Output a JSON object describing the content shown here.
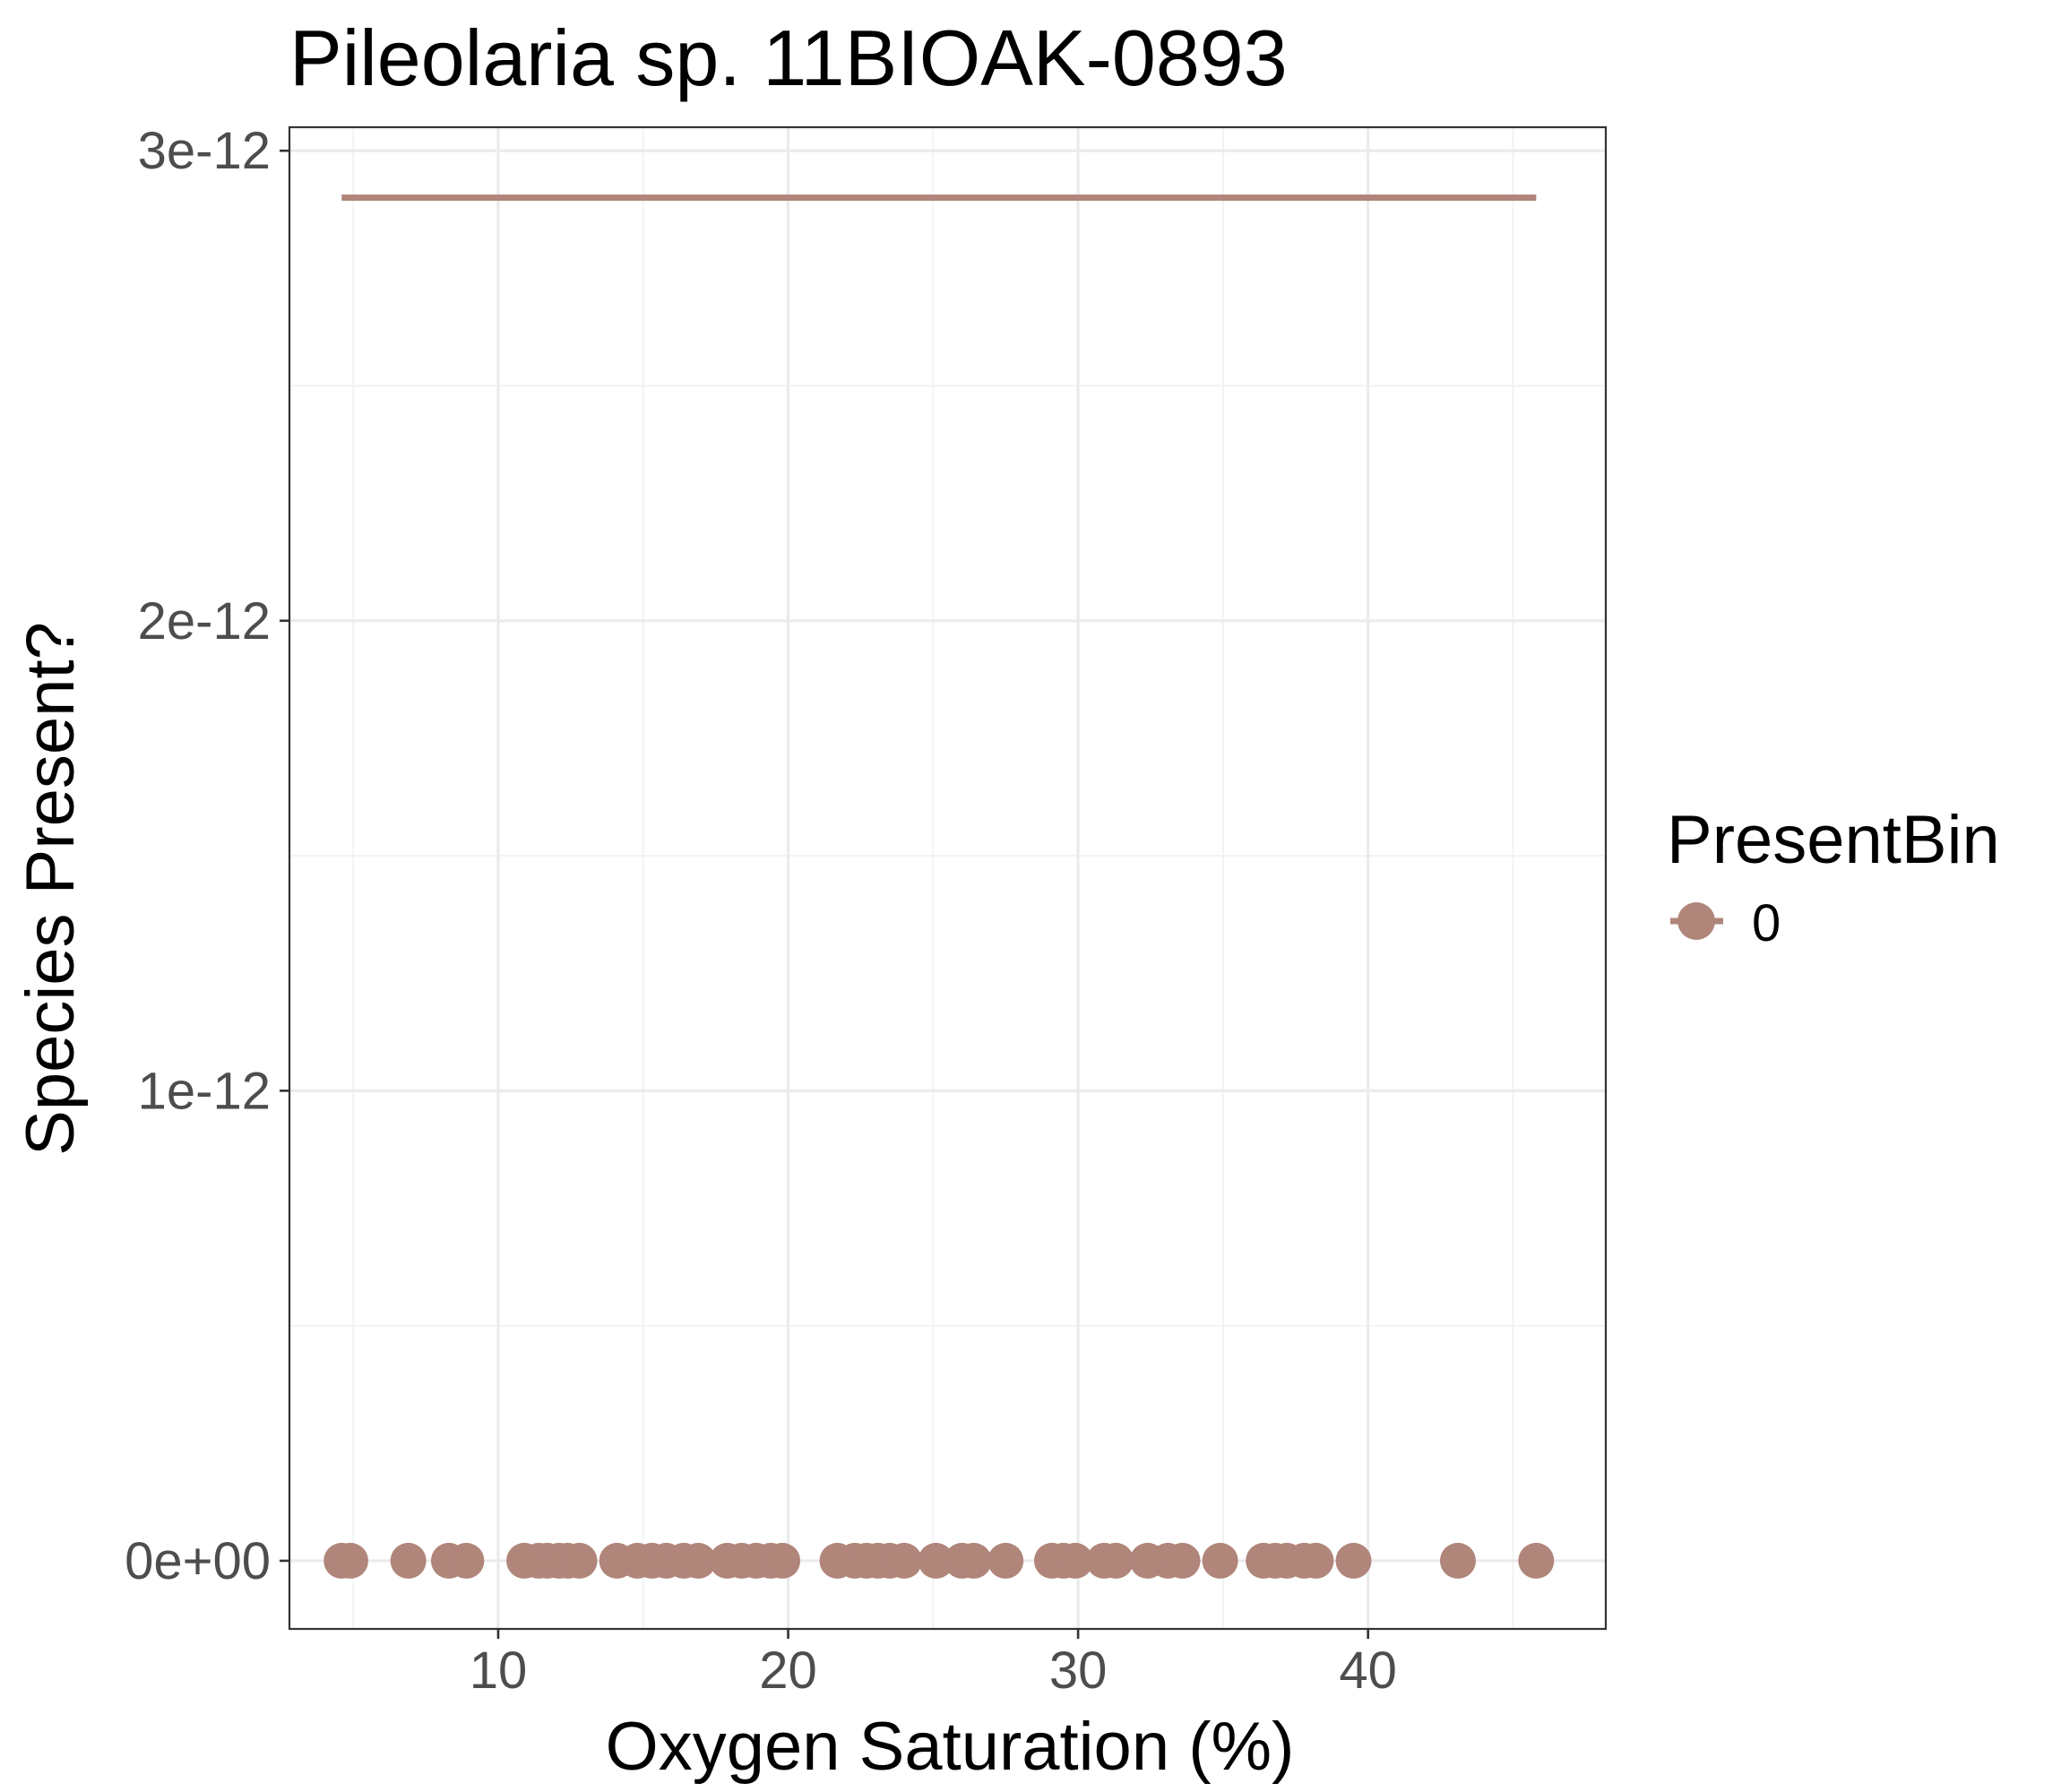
{
  "chart_data": {
    "type": "scatter",
    "title": "Pileolaria sp. 11BIOAK-0893",
    "xlabel": "Oxygen Saturation (%)",
    "ylabel": "Species Present?",
    "xlim": [
      2.8,
      48.2
    ],
    "ylim": [
      -1.45e-13,
      3.05e-12
    ],
    "x_ticks": [
      10,
      20,
      30,
      40
    ],
    "x_tick_labels": [
      "10",
      "20",
      "30",
      "40"
    ],
    "y_ticks": [
      0,
      1e-12,
      2e-12,
      3e-12
    ],
    "y_tick_labels": [
      "0e+00",
      "1e-12",
      "2e-12",
      "3e-12"
    ],
    "grid": true,
    "legend": {
      "title": "PresentBin",
      "position": "right",
      "entries": [
        "0"
      ]
    },
    "series": [
      {
        "name": "0",
        "color": "#b0857a",
        "points_x": [
          4.6,
          4.9,
          6.9,
          8.3,
          8.9,
          10.9,
          11.4,
          11.7,
          12.1,
          12.4,
          12.8,
          14.1,
          14.8,
          15.3,
          15.8,
          16.4,
          16.9,
          17.9,
          18.4,
          18.9,
          19.4,
          19.8,
          21.7,
          22.3,
          22.7,
          23.1,
          23.5,
          24.0,
          25.1,
          26.0,
          26.4,
          27.5,
          29.1,
          29.5,
          29.9,
          30.9,
          31.3,
          32.4,
          33.1,
          33.6,
          34.9,
          36.4,
          36.8,
          37.2,
          37.8,
          38.2,
          39.5,
          43.1,
          45.8
        ],
        "points_y_value": 0,
        "fit_line": {
          "x": [
            4.6,
            45.8
          ],
          "y": [
            2.9e-12,
            2.9e-12
          ]
        }
      }
    ]
  }
}
